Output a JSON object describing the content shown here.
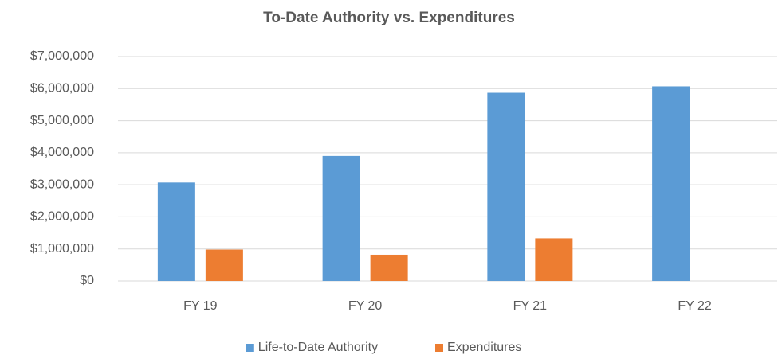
{
  "chart_data": {
    "type": "bar",
    "title": "To-Date Authority vs. Expenditures",
    "categories": [
      "FY 19",
      "FY 20",
      "FY 21",
      "FY 22"
    ],
    "series": [
      {
        "name": "Life-to-Date Authority",
        "color": "#5b9bd5",
        "values": [
          3070000,
          3900000,
          5870000,
          6070000
        ]
      },
      {
        "name": "Expenditures",
        "color": "#ed7d31",
        "values": [
          980000,
          820000,
          1330000,
          null
        ]
      }
    ],
    "ylim": [
      0,
      7000000
    ],
    "yticks": [
      {
        "value": 0,
        "label": "$0"
      },
      {
        "value": 1000000,
        "label": "$1,000,000"
      },
      {
        "value": 2000000,
        "label": "$2,000,000"
      },
      {
        "value": 3000000,
        "label": "$3,000,000"
      },
      {
        "value": 4000000,
        "label": "$4,000,000"
      },
      {
        "value": 5000000,
        "label": "$5,000,000"
      },
      {
        "value": 6000000,
        "label": "$6,000,000"
      },
      {
        "value": 7000000,
        "label": "$7,000,000"
      }
    ],
    "grid": true,
    "legend": "bottom"
  }
}
